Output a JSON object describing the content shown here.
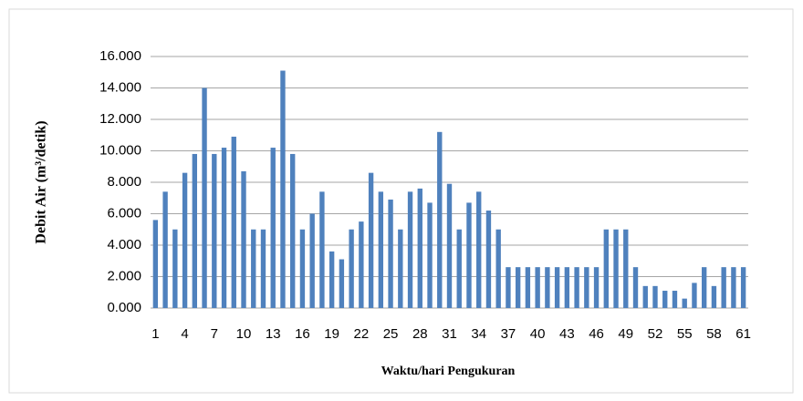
{
  "chart_data": {
    "type": "bar",
    "x_label": "Waktu/hari Pengukuran",
    "y_label": "Debit Air (m³/detik)",
    "categories": [
      "1",
      null,
      null,
      "4",
      null,
      null,
      "7",
      null,
      null,
      "10",
      null,
      null,
      "13",
      null,
      null,
      "16",
      null,
      null,
      "19",
      null,
      null,
      "22",
      null,
      null,
      "25",
      null,
      null,
      "28",
      null,
      null,
      "31",
      null,
      null,
      "34",
      null,
      null,
      "37",
      null,
      null,
      "40",
      null,
      null,
      "43",
      null,
      null,
      "46",
      null,
      null,
      "49",
      null,
      null,
      "52",
      null,
      null,
      "55",
      null,
      null,
      "58",
      null,
      null,
      "61"
    ],
    "values": [
      5.6,
      7.4,
      5.0,
      8.6,
      9.8,
      14.0,
      9.8,
      10.2,
      10.9,
      8.7,
      5.0,
      5.0,
      10.2,
      15.1,
      9.8,
      5.0,
      6.0,
      7.4,
      3.6,
      3.1,
      5.0,
      5.5,
      8.6,
      7.4,
      6.9,
      5.0,
      7.4,
      7.6,
      6.7,
      11.2,
      7.9,
      5.0,
      6.7,
      7.4,
      6.2,
      5.0,
      2.6,
      2.6,
      2.6,
      2.6,
      2.6,
      2.6,
      2.6,
      2.6,
      2.6,
      2.6,
      5.0,
      5.0,
      5.0,
      2.6,
      1.4,
      1.4,
      1.1,
      1.1,
      0.6,
      1.6,
      2.6,
      1.4,
      2.6,
      2.6,
      2.6
    ],
    "color": "#4f81bd",
    "ylim": [
      0,
      16
    ],
    "yticks": [
      {
        "value": 0,
        "label": "0.000"
      },
      {
        "value": 2,
        "label": "2.000"
      },
      {
        "value": 4,
        "label": "4.000"
      },
      {
        "value": 6,
        "label": "6.000"
      },
      {
        "value": 8,
        "label": "8.000"
      },
      {
        "value": 10,
        "label": "10.000"
      },
      {
        "value": 12,
        "label": "12.000"
      },
      {
        "value": 14,
        "label": "14.000"
      },
      {
        "value": 16,
        "label": "16.000"
      }
    ],
    "grid": true
  }
}
